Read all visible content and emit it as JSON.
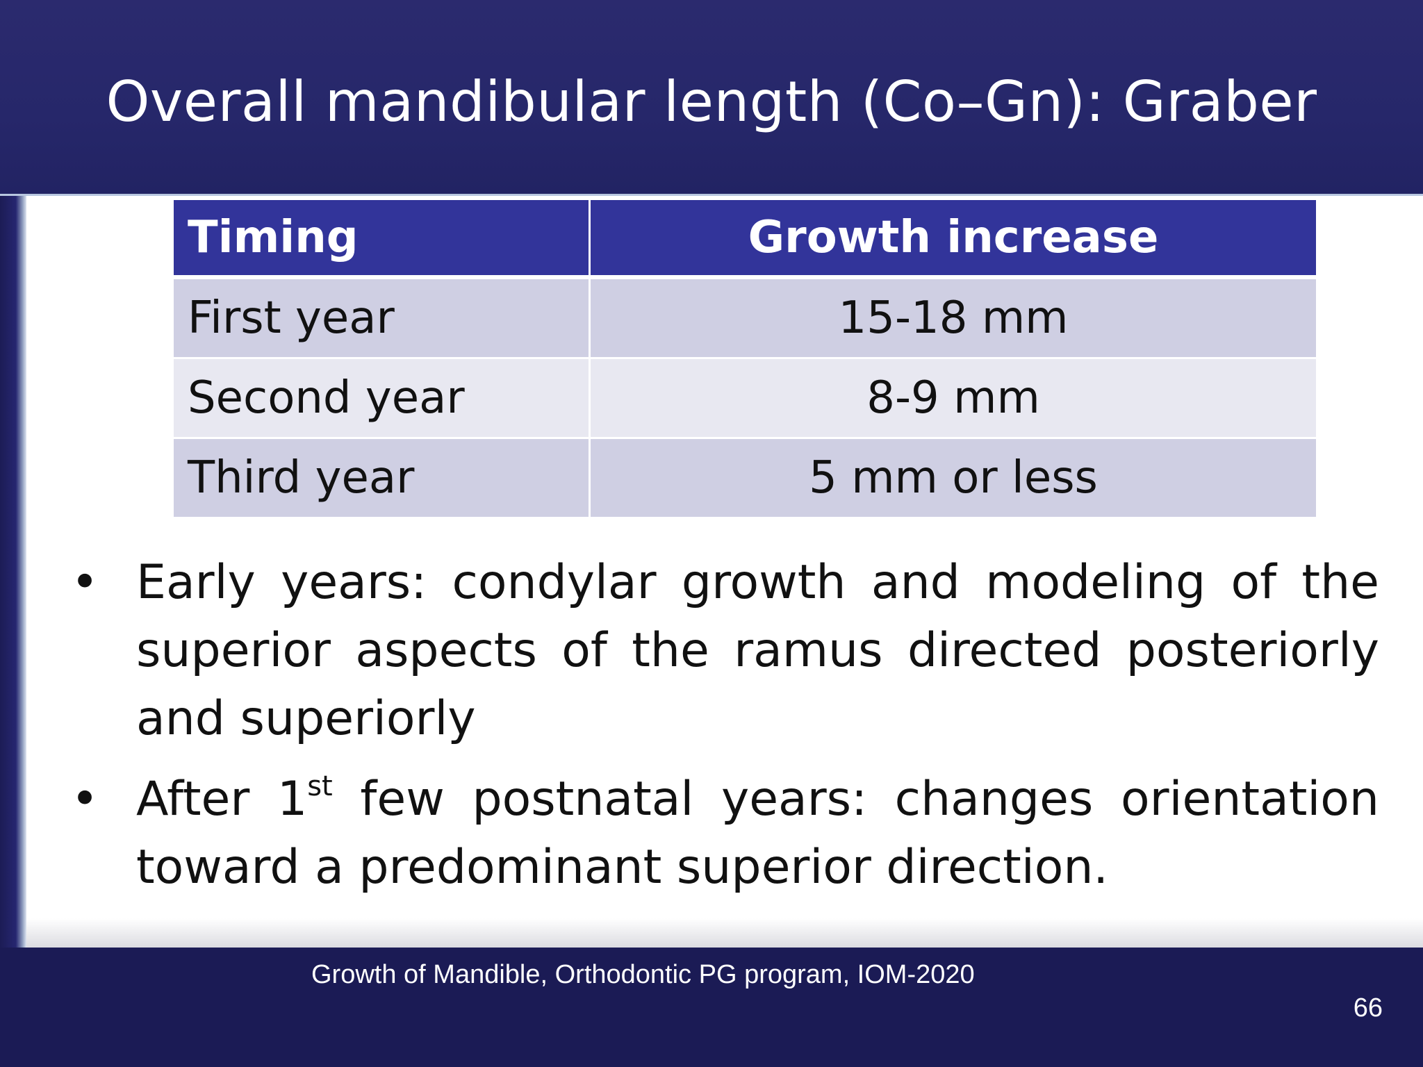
{
  "slide": {
    "title": "Overall mandibular length (Co–Gn): Graber",
    "table": {
      "headers": [
        "Timing",
        "Growth increase"
      ],
      "rows": [
        {
          "timing": "First year",
          "growth": "15-18 mm"
        },
        {
          "timing": "Second year",
          "growth": "8-9 mm"
        },
        {
          "timing": "Third year",
          "growth": "5 mm or less"
        }
      ]
    },
    "bullets": [
      {
        "text": "Early years: condylar growth and modeling of the superior aspects of the ramus directed posteriorly and superiorly"
      },
      {
        "before": "After 1",
        "sup": "st",
        "after": " few postnatal years: changes orientation toward a predominant superior direction."
      }
    ],
    "footer": "Growth of Mandible, Orthodontic PG program, IOM-2020",
    "page_number": "66"
  },
  "colors": {
    "title_bar": "#26276a",
    "table_header": "#32349a",
    "row_odd": "#cfcfe3",
    "row_even": "#e8e8f1",
    "footer_bar": "#1b1b55"
  }
}
